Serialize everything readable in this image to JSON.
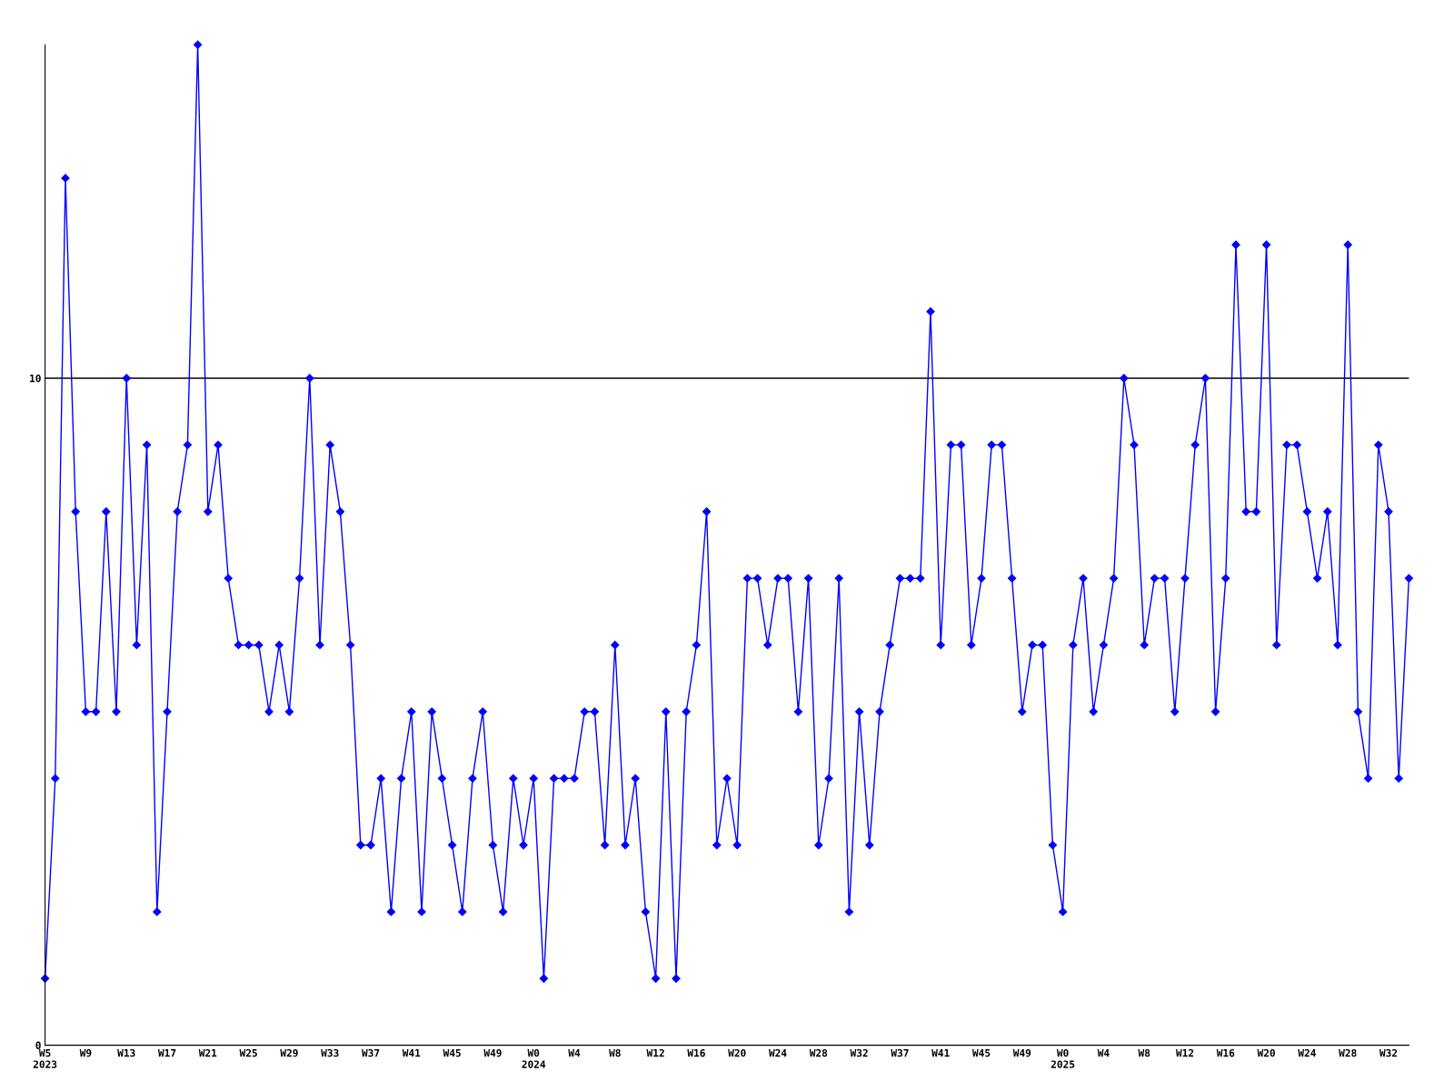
{
  "chart_data": {
    "type": "line",
    "categories": [
      "W5\n2023",
      null,
      null,
      null,
      "W9",
      null,
      null,
      null,
      "W13",
      null,
      null,
      null,
      "W17",
      null,
      null,
      null,
      "W21",
      null,
      null,
      null,
      "W25",
      null,
      null,
      null,
      "W29",
      null,
      null,
      null,
      "W33",
      null,
      null,
      null,
      "W37",
      null,
      null,
      null,
      "W41",
      null,
      null,
      null,
      "W45",
      null,
      null,
      null,
      "W49",
      null,
      null,
      null,
      "W0\n2024",
      null,
      null,
      null,
      "W4",
      null,
      null,
      null,
      "W8",
      null,
      null,
      null,
      "W12",
      null,
      null,
      null,
      "W16",
      null,
      null,
      null,
      "W20",
      null,
      null,
      null,
      "W24",
      null,
      null,
      null,
      "W28",
      null,
      null,
      null,
      "W32",
      null,
      null,
      null,
      "W37",
      null,
      null,
      null,
      "W41",
      null,
      null,
      null,
      "W45",
      null,
      null,
      null,
      "W49",
      null,
      null,
      null,
      "W0\n2025",
      null,
      null,
      null,
      "W4",
      null,
      null,
      null,
      "W8",
      null,
      null,
      null,
      "W12",
      null,
      null,
      null,
      "W16",
      null,
      null,
      null,
      "W20",
      null,
      null,
      null,
      "W24",
      null,
      null,
      null,
      "W28",
      null,
      null,
      null,
      "W32",
      null,
      null
    ],
    "series": [
      {
        "color": "#0000ff",
        "values": [
          1,
          4,
          13,
          8,
          5,
          5,
          8,
          5,
          10,
          6,
          9,
          2,
          5,
          8,
          9,
          15,
          8,
          9,
          7,
          6,
          6,
          6,
          5,
          6,
          5,
          7,
          10,
          6,
          9,
          8,
          6,
          3,
          3,
          4,
          2,
          4,
          5,
          2,
          5,
          4,
          3,
          2,
          4,
          5,
          3,
          2,
          4,
          3,
          4,
          1,
          4,
          4,
          4,
          5,
          5,
          3,
          6,
          3,
          4,
          2,
          1,
          5,
          1,
          5,
          6,
          8,
          3,
          4,
          3,
          7,
          7,
          6,
          7,
          7,
          5,
          7,
          3,
          4,
          7,
          2,
          5,
          3,
          5,
          6,
          7,
          7,
          7,
          11,
          6,
          9,
          9,
          6,
          7,
          9,
          9,
          7,
          5,
          6,
          6,
          3,
          2,
          6,
          7,
          5,
          6,
          7,
          10,
          9,
          6,
          7,
          7,
          5,
          7,
          9,
          10,
          5,
          7,
          12,
          8,
          8,
          12,
          6,
          9,
          9,
          8,
          7,
          8,
          6,
          12,
          5,
          4,
          9,
          8,
          4,
          7
        ]
      }
    ],
    "ylim": [
      0,
      15
    ],
    "yticks": [
      0,
      10
    ],
    "grid": "y",
    "marker": "diamond",
    "line_style": "solid"
  }
}
